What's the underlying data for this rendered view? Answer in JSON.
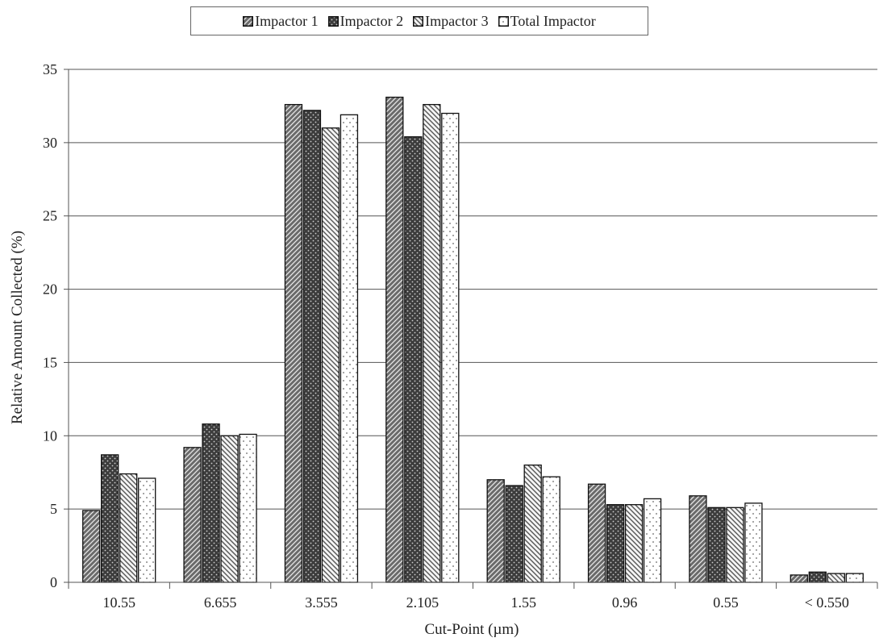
{
  "chart_data": {
    "type": "bar",
    "title": "",
    "xlabel": "Cut-Point (µm)",
    "ylabel": "Relative Amount Collected (%)",
    "ylim": [
      0,
      35
    ],
    "yticks": [
      0,
      5,
      10,
      15,
      20,
      25,
      30,
      35
    ],
    "grid": "horizontal",
    "legend_position": "top",
    "categories": [
      "10.55",
      "6.655",
      "3.555",
      "2.105",
      "1.55",
      "0.96",
      "0.55",
      "< 0.550"
    ],
    "series": [
      {
        "name": "Impactor 1",
        "pattern": "diagonal-dense",
        "color": "#555555",
        "values": [
          4.9,
          9.2,
          32.6,
          33.1,
          7.0,
          6.7,
          5.9,
          0.5
        ]
      },
      {
        "name": "Impactor 2",
        "pattern": "dots",
        "color": "#444444",
        "values": [
          8.7,
          10.8,
          32.2,
          30.4,
          6.6,
          5.3,
          5.1,
          0.7
        ]
      },
      {
        "name": "Impactor 3",
        "pattern": "diagonal-light",
        "color": "#888888",
        "values": [
          7.4,
          10.0,
          31.0,
          32.6,
          8.0,
          5.3,
          5.1,
          0.6
        ]
      },
      {
        "name": "Total Impactor",
        "pattern": "sparse-dots",
        "color": "#ffffff",
        "values": [
          7.1,
          10.1,
          31.9,
          32.0,
          7.2,
          5.7,
          5.4,
          0.6
        ]
      }
    ]
  }
}
